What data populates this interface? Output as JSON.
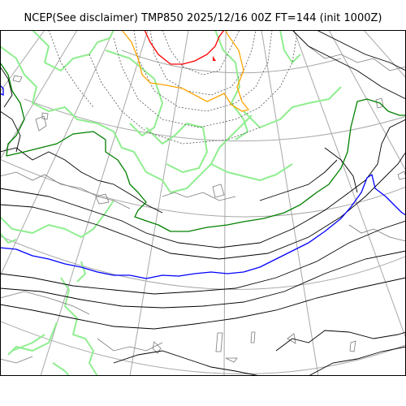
{
  "figure": {
    "title": "NCEP(See disclaimer) TMP850 2025/12/16 00Z FT=144 (init 1000Z)"
  },
  "colors": {
    "background": "#ffffff",
    "frame": "#000000",
    "graticule": "#a8a8a8",
    "coastline": "#7a7a7a",
    "isotherm_standard": "#000000",
    "isotherm_dashed": "#555555",
    "isotherm_0C": "#0000ff",
    "isotherm_minus12C": "#008000",
    "isotherm_minus24C": "#ffa500",
    "isotherm_minus36C": "#ff0000",
    "terrain_outline": "#90ee90"
  },
  "map": {
    "field": "TMP850",
    "projection": "polar-stereographic",
    "graticule": true
  }
}
